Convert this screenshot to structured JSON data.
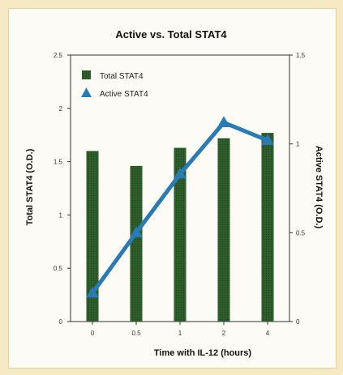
{
  "chart_data": {
    "type": "bar+line",
    "title": "Active vs. Total STAT4",
    "xlabel": "Time with IL-12 (hours)",
    "ylabel_left": "Total STAT4 (O.D.)",
    "ylabel_right": "Active STAT4 (O.D.)",
    "categories": [
      "0",
      "0.5",
      "1",
      "2",
      "4"
    ],
    "ylim_left": [
      0,
      2.5
    ],
    "ylim_right": [
      0,
      1.5
    ],
    "yticks_left": [
      "0",
      "0.5",
      "1",
      "1.5",
      "2",
      "2.5"
    ],
    "yticks_right": [
      "0",
      "0.5",
      "1",
      "1.5"
    ],
    "grid": false,
    "legend_position": "top-left",
    "series": [
      {
        "name": "Total STAT4",
        "type": "bar",
        "axis": "left",
        "color": "#2e5e2c",
        "values": [
          1.6,
          1.46,
          1.63,
          1.72,
          1.77
        ]
      },
      {
        "name": "Active STAT4",
        "type": "line",
        "axis": "right",
        "color": "#2a7ab4",
        "values": [
          0.16,
          0.5,
          0.83,
          1.12,
          1.02
        ]
      }
    ]
  }
}
